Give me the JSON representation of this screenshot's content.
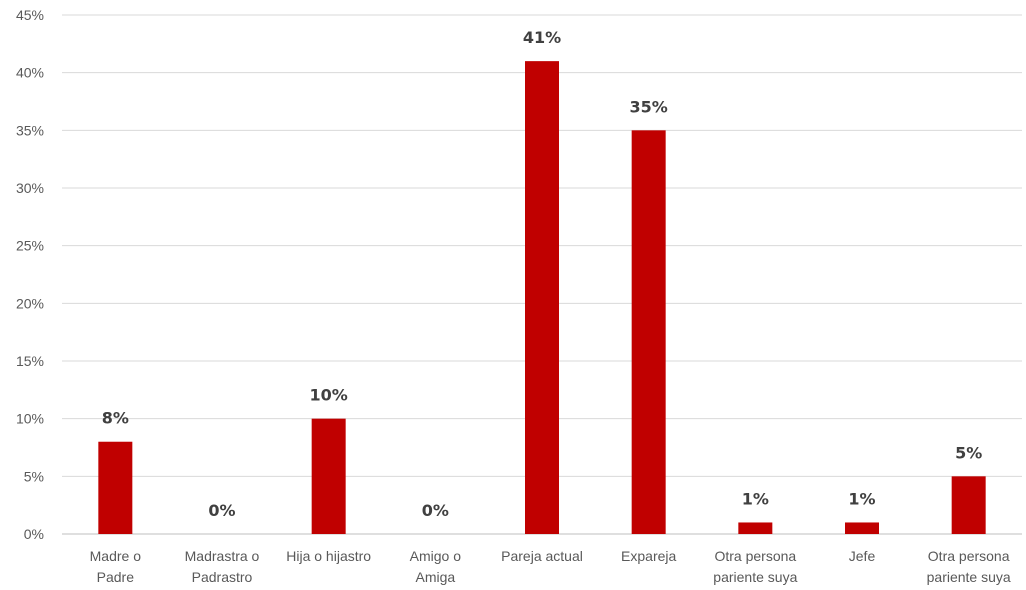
{
  "chart_data": {
    "type": "bar",
    "categories": [
      [
        "Madre o",
        "Padre"
      ],
      [
        "Madrastra o",
        "Padrastro"
      ],
      [
        "Hija o hijastro"
      ],
      [
        "Amigo o",
        "Amiga"
      ],
      [
        "Pareja actual"
      ],
      [
        "Expareja"
      ],
      [
        "Otra persona",
        "pariente suya"
      ],
      [
        "Jefe"
      ],
      [
        "Otra persona",
        "pariente suya"
      ]
    ],
    "values": [
      8,
      0,
      10,
      0,
      41,
      35,
      1,
      1,
      5
    ],
    "data_labels": [
      "8%",
      "0%",
      "10%",
      "0%",
      "41%",
      "35%",
      "1%",
      "1%",
      "5%"
    ],
    "yticks": [
      "0%",
      "5%",
      "10%",
      "15%",
      "20%",
      "25%",
      "30%",
      "35%",
      "40%",
      "45%"
    ],
    "ylim": [
      0,
      45
    ],
    "ystep": 5,
    "grid": true,
    "bar_color": "#c00000",
    "title": "",
    "xlabel": "",
    "ylabel": ""
  }
}
